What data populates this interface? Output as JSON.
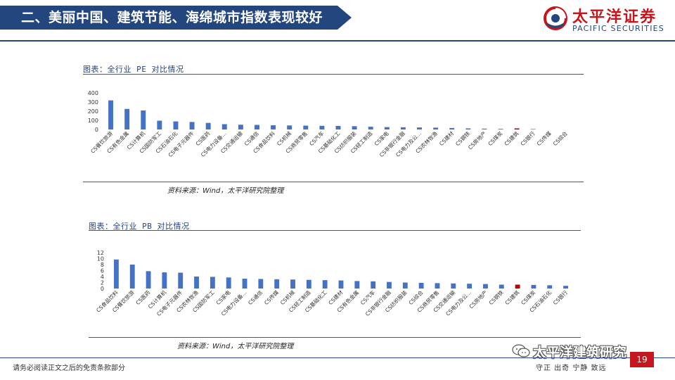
{
  "header": {
    "title": "二、美丽中国、建筑节能、海绵城市指数表现较好",
    "logo_cn": "太平洋证券",
    "logo_en": "PACIFIC SECURITIES",
    "brand_color": "#24467e",
    "accent_color": "#c4161c"
  },
  "panels": [
    {
      "title": "图表：全行业 PE 对比情况",
      "source": "资料来源：Wind，太平洋研究院整理"
    },
    {
      "title": "图表：全行业 PB 对比情况",
      "source": "资料来源：Wind，太平洋研究院整理"
    }
  ],
  "chart_data": [
    {
      "type": "bar",
      "title": "",
      "ylim": [
        0,
        400
      ],
      "yticks": [
        0,
        100,
        200,
        300,
        400
      ],
      "bar_color": "#4472c4",
      "highlight_color": "#c00000",
      "highlight_category": "CS建筑",
      "categories": [
        "CS餐饮旅游",
        "CS有色金属",
        "CS计算机",
        "CS国防军工",
        "CS石油石化",
        "CS电子元器件",
        "CS医药",
        "CS电力设备...",
        "CS交通运输",
        "CS通信",
        "CS食品饮料",
        "CS机械",
        "CS商贸零售",
        "CS汽车",
        "CS基础化工",
        "CS纺织服装",
        "CS轻工制造",
        "CS家电",
        "CS非银行金融",
        "CS电力及公...",
        "CS农林牧渔",
        "CS建材",
        "CS钢铁",
        "CS房地产",
        "CS煤炭",
        "CS建筑",
        "CS银行",
        "CS传媒",
        "CS综合"
      ],
      "values": [
        318,
        225,
        208,
        96,
        88,
        82,
        72,
        58,
        52,
        50,
        46,
        44,
        42,
        40,
        39,
        36,
        30,
        26,
        24,
        22,
        20,
        16,
        12,
        9,
        7,
        12,
        5,
        0,
        0
      ]
    },
    {
      "type": "bar",
      "title": "",
      "ylim": [
        0,
        12
      ],
      "yticks": [
        0,
        2,
        4,
        6,
        8,
        10,
        12
      ],
      "bar_color": "#4472c4",
      "highlight_color": "#c00000",
      "highlight_category": "CS建筑",
      "categories": [
        "CS食品饮料",
        "CS餐饮旅游",
        "CS医药",
        "CS计算机",
        "CS电子元器件",
        "CS农林牧渔",
        "CS国防军工",
        "CS家电",
        "CS电力设备...",
        "CS通信",
        "CS传媒",
        "CS机械",
        "CS轻工制造",
        "CS基础化工",
        "CS建材",
        "CS有色金属",
        "CS汽车",
        "CS非银行金融",
        "CS纺织服装",
        "CS综合",
        "CS商贸零售",
        "CS交通运输",
        "CS电力及公...",
        "CS房地产",
        "CS钢铁",
        "CS建筑",
        "CS煤炭",
        "CS石油石化",
        "CS银行"
      ],
      "values": [
        9.7,
        8.0,
        5.8,
        5.4,
        5.3,
        4.0,
        3.9,
        3.7,
        3.3,
        3.2,
        3.1,
        3.0,
        2.9,
        2.8,
        2.7,
        2.5,
        2.4,
        2.2,
        2.0,
        1.9,
        1.8,
        1.7,
        1.6,
        1.5,
        1.3,
        1.3,
        1.2,
        1.1,
        0.9
      ]
    }
  ],
  "footer": {
    "disclaimer": "请务必阅读正文之后的免责条款部分",
    "motto": "守正  出奇  宁静  致远",
    "page": "19",
    "watermark": "太平洋建筑研究"
  }
}
